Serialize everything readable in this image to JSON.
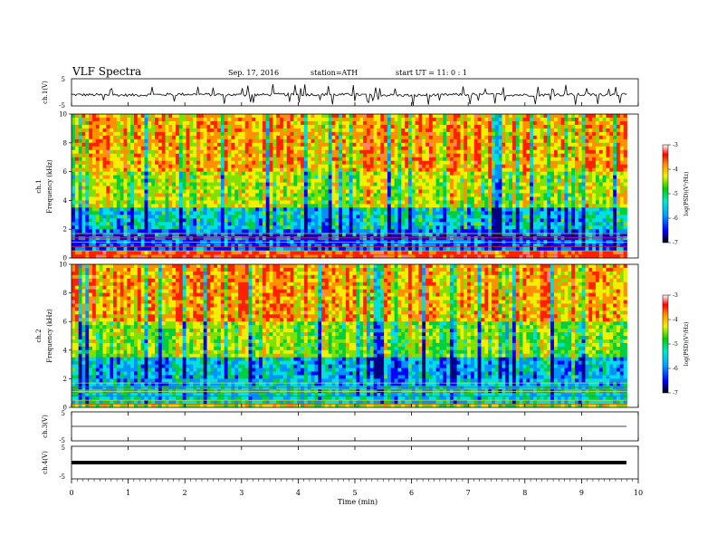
{
  "header": {
    "title": "VLF  Spectra",
    "date": "Sep. 17, 2016",
    "station": "station=ATH",
    "start": "start  UT =   11: 0  : 1"
  },
  "colorbar": {
    "label": "log(PSD)(V²/Hz)",
    "ticks": [
      "-3",
      "-4",
      "-5",
      "-6",
      "-7"
    ]
  },
  "chart_data": [
    {
      "type": "line",
      "name": "ch.1 waveform",
      "ylabel": "ch.1(V)",
      "ylim": [
        -5,
        5
      ],
      "yticks": [
        "5",
        "-5"
      ],
      "x": [
        0,
        1,
        2,
        3,
        4,
        5,
        6,
        7,
        8,
        9,
        9.8
      ],
      "values": [
        -1,
        -1.2,
        -0.8,
        -1.1,
        -0.9,
        -1.0,
        -1.3,
        -0.9,
        -1.1,
        -1.0,
        -1.0
      ]
    },
    {
      "type": "heatmap",
      "name": "ch.1 spectrogram",
      "ylabel": "ch.1\nFrequency (kHz)",
      "ylim": [
        0,
        10
      ],
      "yticks": [
        "0",
        "2",
        "4",
        "6",
        "8",
        "10"
      ],
      "xlim": [
        0,
        9.8
      ],
      "bands": [
        {
          "f_low": 6,
          "f_high": 10,
          "log_psd": -4
        },
        {
          "f_low": 3.5,
          "f_high": 6,
          "log_psd": -4.5
        },
        {
          "f_low": 2,
          "f_high": 3.5,
          "log_psd": -5.5
        },
        {
          "f_low": 0.5,
          "f_high": 2,
          "log_psd": -6
        },
        {
          "f_low": 0,
          "f_high": 0.5,
          "log_psd": -3.5
        }
      ]
    },
    {
      "type": "heatmap",
      "name": "ch.2 spectrogram",
      "ylabel": "ch.2\nFrequency (kHz)",
      "ylim": [
        0,
        10
      ],
      "yticks": [
        "0",
        "2",
        "4",
        "6",
        "8",
        "10"
      ],
      "xlim": [
        0,
        9.8
      ],
      "bands": [
        {
          "f_low": 6,
          "f_high": 10,
          "log_psd": -4
        },
        {
          "f_low": 3.5,
          "f_high": 6,
          "log_psd": -4.7
        },
        {
          "f_low": 1.5,
          "f_high": 3.5,
          "log_psd": -5.7
        },
        {
          "f_low": 0.3,
          "f_high": 1.5,
          "log_psd": -5.5
        },
        {
          "f_low": 0,
          "f_high": 0.3,
          "log_psd": -4.5
        }
      ]
    },
    {
      "type": "line",
      "name": "ch.3 waveform",
      "ylabel": "ch.3(V)",
      "ylim": [
        -5,
        5
      ],
      "yticks": [
        "5",
        "-5"
      ],
      "x": [
        0,
        9.8
      ],
      "values": [
        0,
        0
      ]
    },
    {
      "type": "line",
      "name": "ch.4 waveform",
      "ylabel": "ch.4(V)",
      "ylim": [
        -5,
        5
      ],
      "yticks": [
        "5",
        "-5"
      ],
      "x": [
        0,
        9.8
      ],
      "values": [
        0,
        0
      ]
    }
  ],
  "x_axis": {
    "label": "Time  (min)",
    "xlim": [
      0,
      10
    ],
    "ticks": [
      "0",
      "1",
      "2",
      "3",
      "4",
      "5",
      "6",
      "7",
      "8",
      "9",
      "10"
    ]
  }
}
